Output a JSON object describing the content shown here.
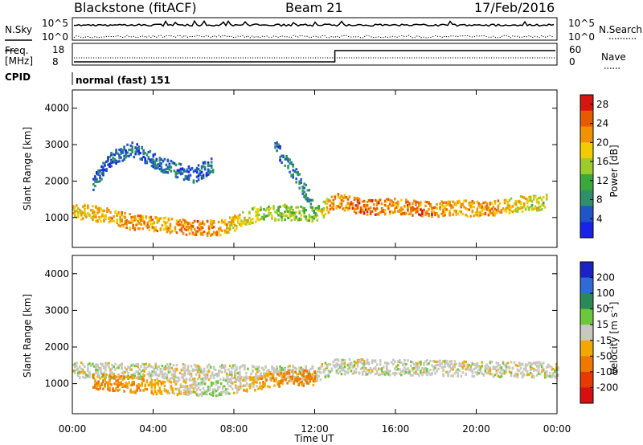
{
  "header": {
    "station": "Blackstone (fitACF)",
    "beam": "Beam 21",
    "date": "17/Feb/2016"
  },
  "status_panels": {
    "nsky_label": "N.Sky",
    "nsearch_label": "N.Search",
    "freq_label_1": "Freq.",
    "freq_label_2": "[MHz]",
    "nave_label": "Nave",
    "cpid_label": "CPID",
    "cpid_value": "normal (fast) 151",
    "noise_ticks": [
      "10^5",
      "10^0"
    ],
    "freq_ticks": [
      "18",
      "8"
    ],
    "nave_ticks": [
      "60",
      "0"
    ]
  },
  "chart_data": [
    {
      "type": "heatmap",
      "title": "",
      "xlabel": "",
      "ylabel": "Slant Range [km]",
      "xlim": [
        0,
        24
      ],
      "ylim": [
        180,
        4500
      ],
      "x_ticks": [
        "00:00",
        "04:00",
        "08:00",
        "12:00",
        "16:00",
        "20:00",
        "00:00"
      ],
      "y_ticks": [
        1000,
        2000,
        3000,
        4000
      ],
      "colorbar": {
        "label": "Power [dB]",
        "ticks": [
          4,
          8,
          12,
          16,
          20,
          24,
          28
        ],
        "range": [
          0,
          30
        ],
        "colors": [
          "#1a22e8",
          "#1f55c8",
          "#2f8f6a",
          "#3aa83a",
          "#9ccc2a",
          "#f2cc00",
          "#f39200",
          "#e85a00",
          "#d8160f"
        ]
      },
      "features": [
        {
          "name": "main_band",
          "t": [
            0.0,
            1.5,
            3.0,
            4.5,
            6.0,
            7.5,
            9.0,
            10.5,
            12.0,
            13.0,
            14.5,
            16.0,
            17.5,
            19.0,
            20.5,
            22.0,
            23.5
          ],
          "range_km": [
            1220,
            1100,
            900,
            840,
            740,
            760,
            1120,
            1180,
            1100,
            1500,
            1300,
            1350,
            1250,
            1300,
            1250,
            1400,
            1450
          ],
          "power_db": [
            18,
            20,
            22,
            20,
            24,
            20,
            16,
            14,
            14,
            22,
            24,
            22,
            24,
            20,
            22,
            18,
            16
          ]
        },
        {
          "name": "upper_scatter",
          "t": [
            1.0,
            2.0,
            3.0,
            4.0,
            5.0,
            6.0,
            7.0
          ],
          "range_km": [
            2000,
            2700,
            2900,
            2600,
            2350,
            2200,
            2500
          ],
          "power_db": [
            6,
            6,
            5,
            6,
            6,
            5,
            6
          ]
        },
        {
          "name": "rising_arc",
          "t": [
            10.0,
            11.0,
            12.0
          ],
          "range_km": [
            3000,
            2200,
            1300
          ],
          "power_db": [
            6,
            8,
            10
          ]
        }
      ]
    },
    {
      "type": "heatmap",
      "title": "",
      "xlabel": "Time UT",
      "ylabel": "Slant Range [km]",
      "xlim": [
        0,
        24
      ],
      "ylim": [
        180,
        4500
      ],
      "x_ticks": [
        "00:00",
        "04:00",
        "08:00",
        "12:00",
        "16:00",
        "20:00",
        "00:00"
      ],
      "y_ticks": [
        1000,
        2000,
        3000,
        4000
      ],
      "colorbar": {
        "label": "Velocity [m s-1]",
        "ticks": [
          200,
          100,
          50,
          15,
          -15,
          -50,
          -100,
          -200
        ],
        "colors": [
          "#1a22c8",
          "#2e6ad8",
          "#2a8a55",
          "#6cc83a",
          "#c8c8c0",
          "#f2a800",
          "#f07800",
          "#e83a00",
          "#d80f0f"
        ]
      },
      "features": [
        {
          "name": "ground_scatter",
          "t": [
            0.0,
            12.0,
            13.0,
            24.0
          ],
          "range_km": [
            1400,
            1300,
            1500,
            1400
          ],
          "velocity": [
            0,
            0,
            0,
            0
          ]
        },
        {
          "name": "night_band",
          "t": [
            1.0,
            4.0,
            7.0,
            10.0,
            12.0
          ],
          "range_km": [
            1100,
            950,
            900,
            1150,
            1200
          ],
          "velocity": [
            -60,
            -40,
            20,
            -50,
            -70
          ]
        }
      ]
    }
  ],
  "axes": {
    "ylabel": "Slant Range [km]",
    "xlabel": "Time UT",
    "power_label": "Power [dB]",
    "velocity_label": "Velocity [m s",
    "velocity_sup": "-1",
    "velocity_close": "]"
  }
}
